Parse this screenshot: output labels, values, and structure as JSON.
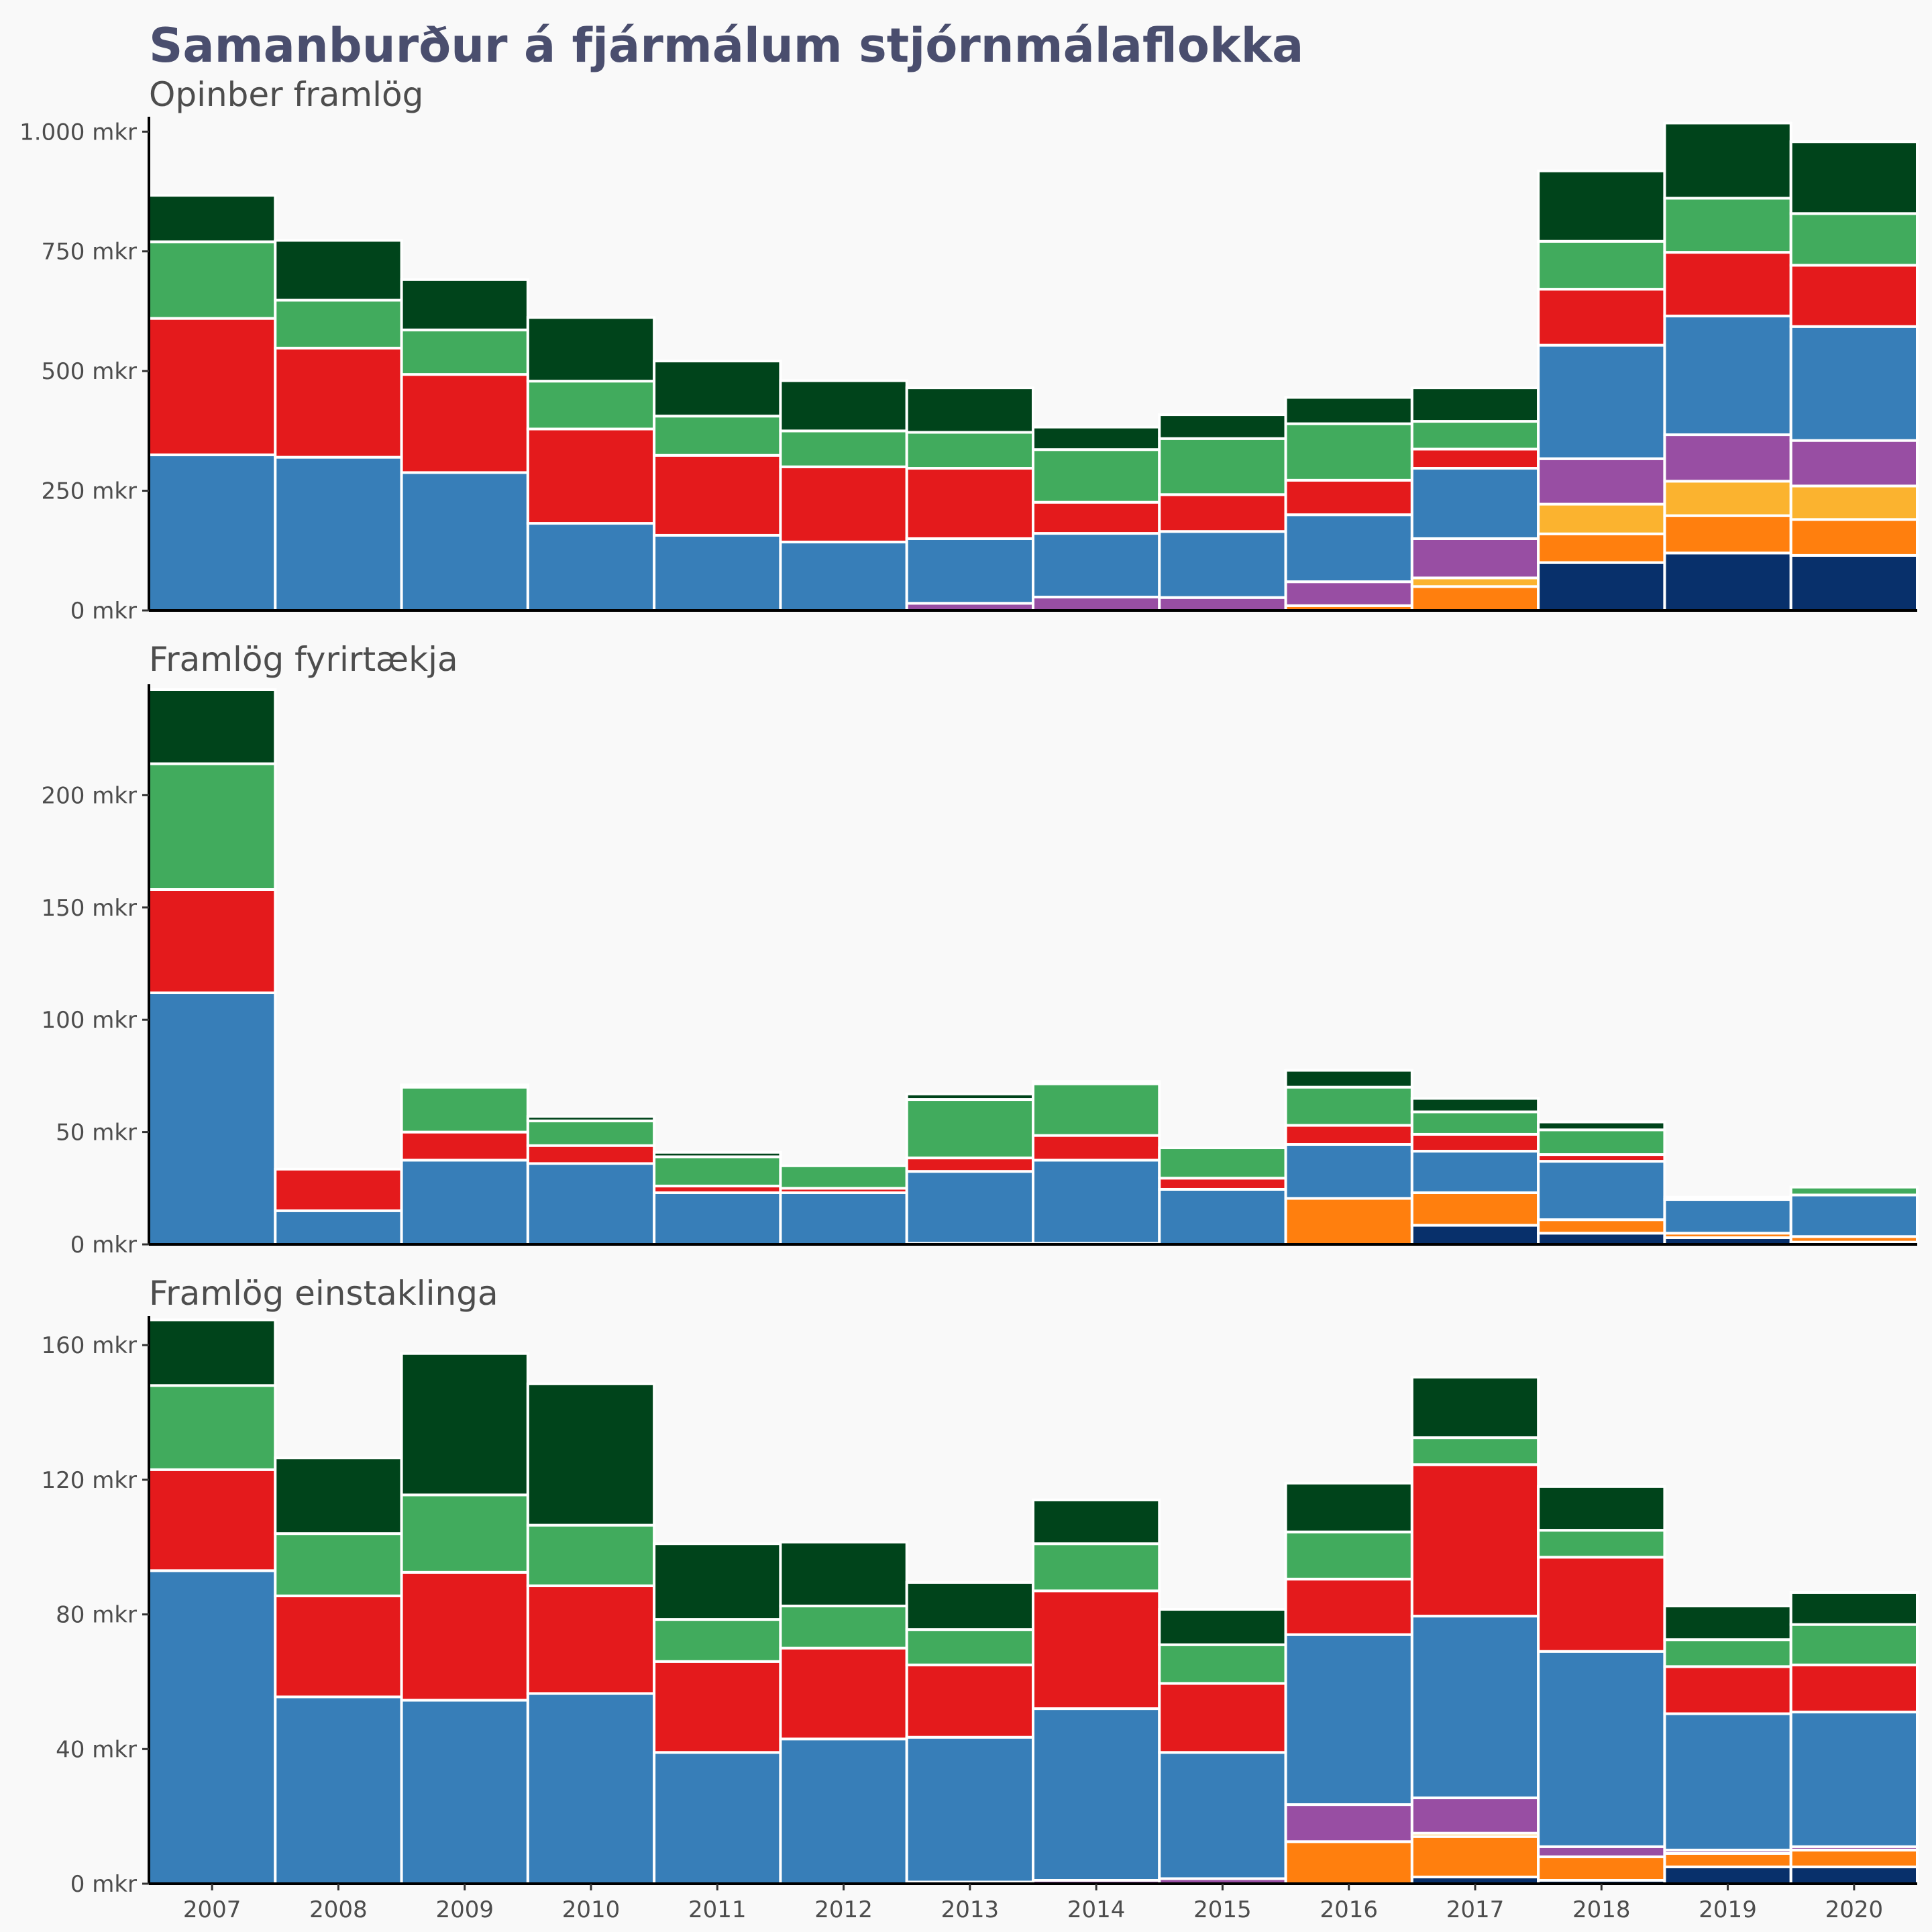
{
  "title": "Samanburður á fjármálum stjórnmálaflokka",
  "colors": {
    "navy": "#08306b",
    "orange": "#ff7f0e",
    "yellow": "#fbb32f",
    "purple": "#984ea3",
    "blue": "#377eb8",
    "red": "#e41a1c",
    "green": "#41ab5d",
    "darkgreen": "#00441b"
  },
  "chart_data": [
    {
      "type": "bar",
      "stacked": true,
      "subtitle": "Opinber framlög",
      "ylim": [
        0,
        1020
      ],
      "yticks": [
        0,
        250,
        500,
        750,
        1000
      ],
      "ytick_labels": [
        "0 mkr",
        "250 mkr",
        "500 mkr",
        "750 mkr",
        "1.000 mkr"
      ],
      "categories": [
        "2007",
        "2008",
        "2009",
        "2010",
        "2011",
        "2012",
        "2013",
        "2014",
        "2015",
        "2016",
        "2017",
        "2018",
        "2019",
        "2020"
      ],
      "series": [
        {
          "color": "navy",
          "values": [
            0,
            0,
            0,
            0,
            0,
            0,
            0,
            0,
            0,
            0,
            0,
            100,
            120,
            115
          ]
        },
        {
          "color": "orange",
          "values": [
            0,
            0,
            0,
            0,
            0,
            0,
            0,
            0,
            0,
            10,
            50,
            60,
            78,
            75
          ]
        },
        {
          "color": "yellow",
          "values": [
            0,
            0,
            0,
            0,
            0,
            0,
            0,
            0,
            0,
            0,
            18,
            62,
            72,
            70
          ]
        },
        {
          "color": "purple",
          "values": [
            0,
            0,
            0,
            0,
            0,
            0,
            15,
            28,
            27,
            50,
            82,
            95,
            97,
            95
          ]
        },
        {
          "color": "blue",
          "values": [
            325,
            320,
            288,
            182,
            157,
            143,
            135,
            133,
            138,
            140,
            147,
            237,
            248,
            238
          ]
        },
        {
          "color": "red",
          "values": [
            285,
            228,
            205,
            197,
            167,
            157,
            147,
            65,
            77,
            72,
            40,
            117,
            133,
            128
          ]
        },
        {
          "color": "green",
          "values": [
            160,
            100,
            93,
            100,
            82,
            75,
            75,
            110,
            117,
            118,
            58,
            100,
            113,
            108
          ]
        },
        {
          "color": "darkgreen",
          "values": [
            97,
            125,
            105,
            133,
            115,
            105,
            93,
            47,
            50,
            55,
            70,
            147,
            157,
            150
          ]
        }
      ]
    },
    {
      "type": "bar",
      "stacked": true,
      "subtitle": "Framlög fyrirtækja",
      "ylim": [
        0,
        247
      ],
      "yticks": [
        0,
        50,
        100,
        150,
        200
      ],
      "ytick_labels": [
        "0 mkr",
        "50 mkr",
        "100 mkr",
        "150 mkr",
        "200 mkr"
      ],
      "categories": [
        "2007",
        "2008",
        "2009",
        "2010",
        "2011",
        "2012",
        "2013",
        "2014",
        "2015",
        "2016",
        "2017",
        "2018",
        "2019",
        "2020"
      ],
      "series": [
        {
          "color": "navy",
          "values": [
            0,
            0,
            0,
            0,
            0,
            0,
            0,
            0,
            0,
            0,
            8.5,
            5,
            3,
            1
          ]
        },
        {
          "color": "orange",
          "values": [
            0,
            0,
            0,
            0,
            0,
            0,
            0,
            0,
            0,
            20.5,
            14.5,
            6,
            2,
            2.5
          ]
        },
        {
          "color": "yellow",
          "values": [
            0,
            0,
            0,
            0,
            0,
            0,
            0,
            0,
            0,
            0,
            0,
            0,
            0,
            0
          ]
        },
        {
          "color": "purple",
          "values": [
            0,
            0,
            0,
            0,
            0,
            0,
            0.5,
            0.5,
            0,
            0,
            0,
            0,
            0,
            0
          ]
        },
        {
          "color": "blue",
          "values": [
            112,
            15,
            37.5,
            36,
            23,
            23,
            32,
            37,
            24.5,
            24,
            18.5,
            26,
            15,
            18.5
          ]
        },
        {
          "color": "red",
          "values": [
            46,
            18.5,
            12.5,
            8,
            3,
            2,
            6,
            11,
            5,
            8.5,
            7.5,
            3,
            1,
            0
          ]
        },
        {
          "color": "green",
          "values": [
            56,
            0,
            20,
            11,
            13,
            10,
            26,
            23,
            13.5,
            17,
            10,
            11,
            0,
            3.5
          ]
        },
        {
          "color": "darkgreen",
          "values": [
            33,
            0,
            1,
            2,
            2,
            0,
            2.5,
            1,
            0,
            7.5,
            6,
            3.5,
            0,
            0
          ]
        }
      ]
    },
    {
      "type": "bar",
      "stacked": true,
      "subtitle": "Framlög einstaklinga",
      "ylim": [
        0,
        167
      ],
      "yticks": [
        0,
        40,
        80,
        120,
        160
      ],
      "ytick_labels": [
        "0 mkr",
        "40 mkr",
        "80 mkr",
        "120 mkr",
        "160 mkr"
      ],
      "categories": [
        "2007",
        "2008",
        "2009",
        "2010",
        "2011",
        "2012",
        "2013",
        "2014",
        "2015",
        "2016",
        "2017",
        "2018",
        "2019",
        "2020"
      ],
      "series": [
        {
          "color": "navy",
          "values": [
            0,
            0,
            0,
            0,
            0,
            0,
            0,
            0,
            0,
            0,
            2,
            1,
            5,
            5
          ]
        },
        {
          "color": "orange",
          "values": [
            0,
            0,
            0,
            0,
            0,
            0,
            0,
            0,
            0,
            12.5,
            12,
            7,
            4,
            5
          ]
        },
        {
          "color": "yellow",
          "values": [
            0,
            0,
            0,
            0,
            0,
            0,
            0,
            0,
            0,
            0,
            1,
            0,
            0,
            0
          ]
        },
        {
          "color": "purple",
          "values": [
            0,
            0,
            0,
            0,
            0,
            0,
            0.5,
            1,
            1.5,
            11,
            10.5,
            3,
            1,
            1
          ]
        },
        {
          "color": "blue",
          "values": [
            93,
            55.5,
            54.5,
            56.5,
            39,
            43,
            43,
            51,
            37.5,
            50.5,
            54,
            58,
            40.5,
            40
          ]
        },
        {
          "color": "red",
          "values": [
            30,
            30,
            38,
            32,
            27,
            27,
            21.5,
            35,
            20.5,
            16.5,
            45,
            28,
            14,
            14
          ]
        },
        {
          "color": "green",
          "values": [
            25,
            18.5,
            23,
            18,
            12.5,
            12.5,
            10.5,
            14,
            11.5,
            14,
            8,
            8,
            8,
            12
          ]
        },
        {
          "color": "darkgreen",
          "values": [
            19.5,
            22.5,
            42,
            42,
            22.5,
            19,
            14,
            13,
            10.5,
            14.5,
            18,
            13,
            10,
            9.5
          ]
        }
      ]
    }
  ]
}
